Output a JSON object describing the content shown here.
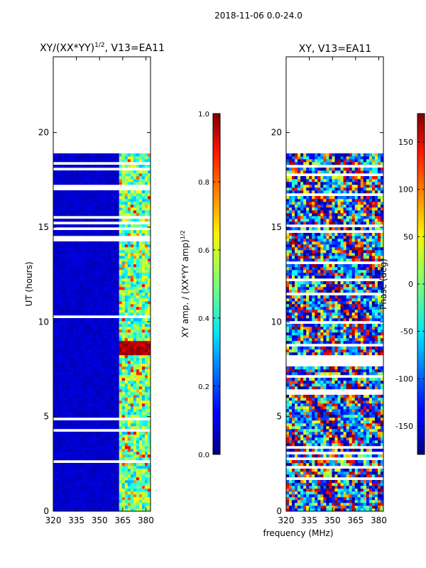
{
  "suptitle": "2018-11-06 0.0-24.0",
  "xlabel_shared": "frequency (MHz)",
  "chart_data": [
    {
      "type": "heatmap",
      "title": "XY/(XX*YY)",
      "title_sup": "1/2",
      "title_suffix": ", V13=EA11",
      "xlabel": "",
      "ylabel": "UT (hours)",
      "xlim": [
        320,
        383
      ],
      "ylim": [
        0,
        24
      ],
      "xticks": [
        320,
        335,
        350,
        365,
        380
      ],
      "yticks": [
        0,
        5,
        10,
        15,
        20
      ],
      "data_extent_hours": [
        0,
        18.9
      ],
      "colorbar": {
        "label": "XY amp. / (XX*YY amp)",
        "label_sup": "1/2",
        "range": [
          0.0,
          1.0
        ],
        "ticks": [
          "0.0",
          "0.2",
          "0.4",
          "0.6",
          "0.8",
          "1.0"
        ],
        "tick_values": [
          0,
          0.2,
          0.4,
          0.6,
          0.8,
          1.0
        ]
      }
    },
    {
      "type": "heatmap",
      "title": "XY, V13=EA11",
      "xlabel": "frequency (MHz)",
      "ylabel": "",
      "xlim": [
        320,
        383
      ],
      "ylim": [
        0,
        24
      ],
      "xticks": [
        320,
        335,
        350,
        365,
        380
      ],
      "yticks": [
        0,
        5,
        10,
        15,
        20
      ],
      "data_extent_hours": [
        0,
        18.9
      ],
      "colorbar": {
        "label": "Phase (deg)",
        "range": [
          -180,
          180
        ],
        "ticks": [
          "-150",
          "-100",
          "-50",
          "0",
          "50",
          "100",
          "150"
        ],
        "tick_values": [
          -150,
          -100,
          -50,
          0,
          50,
          100,
          150
        ]
      }
    }
  ]
}
